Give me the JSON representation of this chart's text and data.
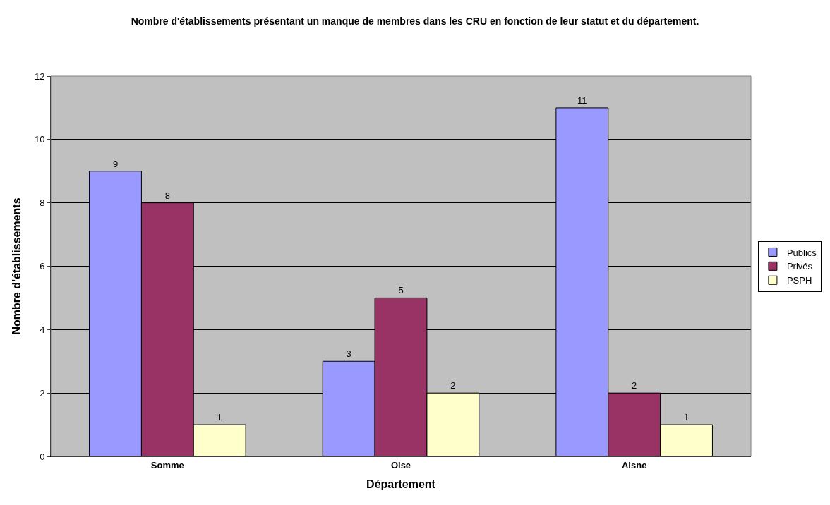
{
  "chart_data": {
    "type": "bar",
    "title": "Nombre d'établissements présentant un manque de membres dans les CRU en fonction de leur statut et du département.",
    "xlabel": "Département",
    "ylabel": "Nombre d'établissements",
    "categories": [
      "Somme",
      "Oise",
      "Aisne"
    ],
    "series": [
      {
        "name": "Publics",
        "color": "#9999ff",
        "values": [
          9,
          3,
          11
        ]
      },
      {
        "name": "Privés",
        "color": "#993366",
        "values": [
          8,
          5,
          2
        ]
      },
      {
        "name": "PSPH",
        "color": "#ffffcc",
        "values": [
          1,
          2,
          1
        ]
      }
    ],
    "ylim": [
      0,
      12
    ],
    "yticks": [
      0,
      2,
      4,
      6,
      8,
      10,
      12
    ],
    "grid": "y",
    "legend": "right",
    "data_labels": true
  }
}
